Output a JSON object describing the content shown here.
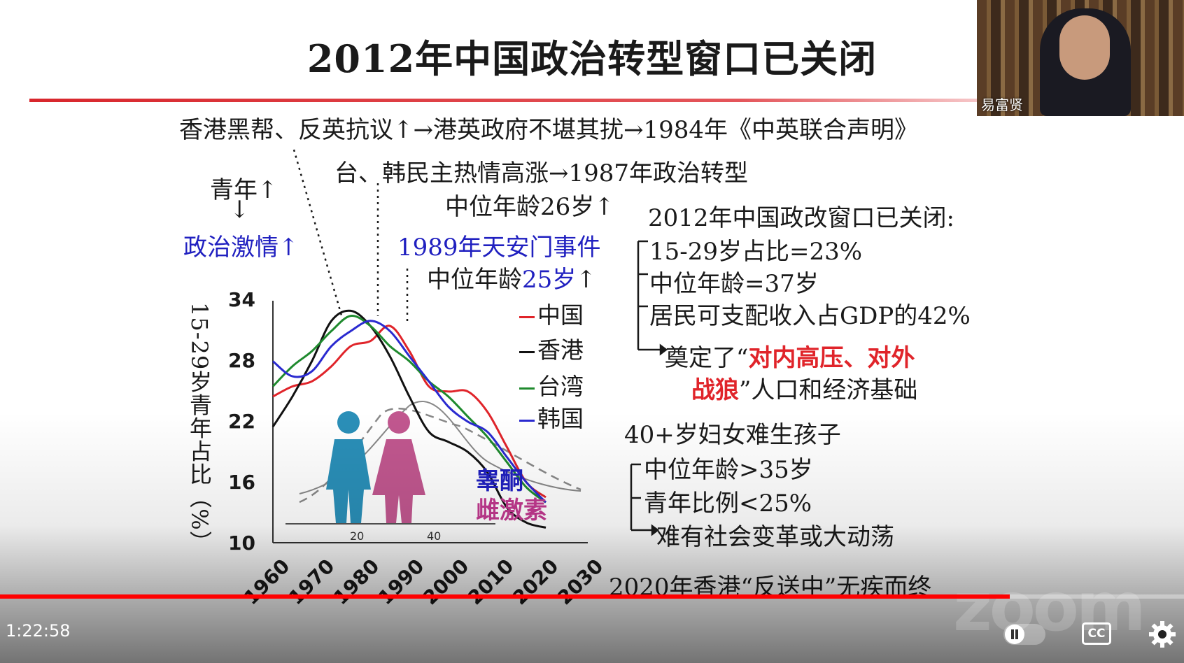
{
  "slide": {
    "title": "2012年中国政治转型窗口已关闭",
    "line1": "香港黑帮、反英抗议↑→港英政府不堪其扰→1984年《中英联合声明》",
    "line2": "台、韩民主热情高涨→1987年政治转型",
    "line3": "中位年龄26岁↑",
    "youth": "青年↑",
    "down_arrow": "↓",
    "passion": "政治激情↑",
    "tiananmen": "1989年天安门事件",
    "median25_prefix": "中位年龄",
    "median25_value": "25岁",
    "median25_suffix": "↑",
    "right_head": "2012年中国政改窗口已关闭:",
    "right_items": [
      "15-29岁占比=23%",
      "中位年龄=37岁",
      "居民可支配收入占GDP的42%"
    ],
    "basis_prefix": "奠定了“",
    "basis_red1": "对内高压、对外",
    "basis_red2": "战狼",
    "basis_suffix": "”人口和经济基础",
    "women_head": "40+岁妇女难生孩子",
    "women_items": [
      "中位年龄>35岁",
      "青年比例<25%",
      "难有社会变革或大动荡"
    ],
    "hk_2020": "2020年香港“反送中”无疾而终",
    "testosterone": "睾酮",
    "estrogen": "雌激素"
  },
  "chart_data": {
    "type": "line",
    "ylabel": "15-29岁青年占比（%）",
    "ylim": [
      10,
      34
    ],
    "yticks": [
      "34",
      "28",
      "22",
      "16",
      "10"
    ],
    "xticks": [
      "1960",
      "1970",
      "1980",
      "1990",
      "2000",
      "2010",
      "2020",
      "2030"
    ],
    "x": [
      1960,
      1965,
      1970,
      1975,
      1980,
      1985,
      1990,
      1995,
      2000,
      2005,
      2010,
      2015,
      2020,
      2025,
      2030
    ],
    "series": [
      {
        "name": "中国",
        "color": "#e0242a",
        "values": [
          24.5,
          25.5,
          26.0,
          27.5,
          29.5,
          30.0,
          31.5,
          29.0,
          25.5,
          25.0,
          25.0,
          23.0,
          19.5,
          16.0,
          14.5
        ]
      },
      {
        "name": "香港",
        "color": "#111111",
        "values": [
          21.5,
          24.5,
          28.0,
          32.0,
          33.0,
          31.5,
          28.5,
          24.5,
          21.0,
          20.0,
          19.0,
          17.0,
          13.5,
          12.0,
          11.5
        ]
      },
      {
        "name": "台湾",
        "color": "#1f8a2e",
        "values": [
          25.5,
          27.5,
          29.0,
          31.0,
          32.5,
          31.5,
          29.5,
          28.0,
          26.0,
          24.5,
          22.5,
          20.5,
          18.0,
          15.5,
          14.0
        ]
      },
      {
        "name": "韩国",
        "color": "#2a2ad0",
        "values": [
          28.0,
          26.5,
          27.0,
          29.5,
          31.0,
          32.0,
          31.0,
          28.5,
          26.0,
          23.5,
          22.0,
          21.0,
          18.5,
          16.0,
          14.0
        ]
      }
    ],
    "inset_xticks": [
      "20",
      "40"
    ]
  },
  "video": {
    "timecode": "1:22:58",
    "progress": 0.853,
    "speaker_name": "易富贤",
    "cc_label": "CC",
    "watermark": "zoom"
  }
}
